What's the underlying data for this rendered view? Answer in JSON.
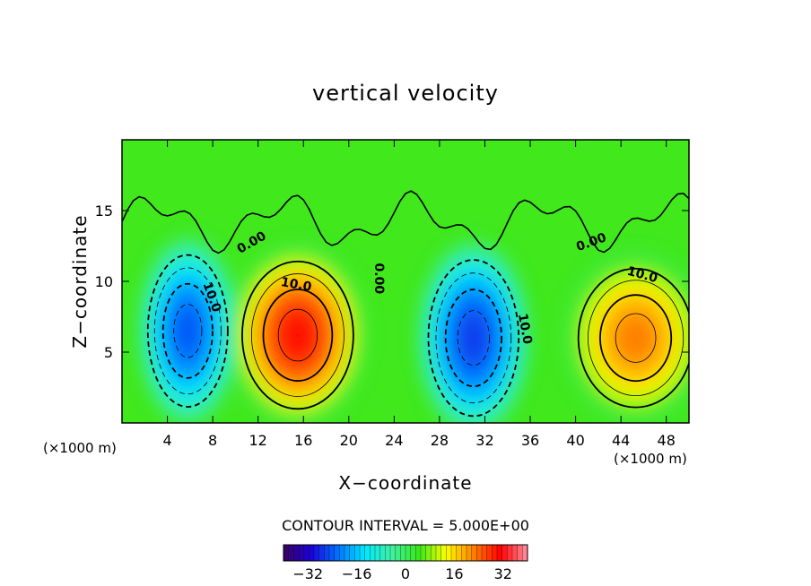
{
  "chart_data": {
    "type": "heatmap",
    "title": "vertical velocity",
    "xlabel": "X−coordinate",
    "ylabel": "Z−coordinate",
    "x_unit": "(×1000 m)",
    "y_unit": "(×1000 m)",
    "xlim": [
      0,
      50
    ],
    "ylim": [
      0,
      20
    ],
    "x_ticks": [
      "4",
      "8",
      "12",
      "16",
      "20",
      "24",
      "28",
      "32",
      "36",
      "40",
      "44",
      "48"
    ],
    "x_tick_values": [
      4,
      8,
      12,
      16,
      20,
      24,
      28,
      32,
      36,
      40,
      44,
      48
    ],
    "y_ticks": [
      "5",
      "10",
      "15"
    ],
    "y_tick_values": [
      5,
      10,
      15
    ],
    "contour_interval_text": "CONTOUR INTERVAL = 5.000E+00",
    "contour_labels": [
      {
        "text": "0.00",
        "x": 11.6,
        "y": 12.5,
        "angle": -30
      },
      {
        "text": "10.0",
        "x": 15.3,
        "y": 9.5,
        "angle": 10
      },
      {
        "text": "10.0",
        "x": 7.6,
        "y": 8.8,
        "angle": 70
      },
      {
        "text": "0.00",
        "x": 22.3,
        "y": 10.2,
        "angle": 90
      },
      {
        "text": "10.0",
        "x": 35.2,
        "y": 6.6,
        "angle": 80
      },
      {
        "text": "0.00",
        "x": 41.5,
        "y": 12.5,
        "angle": -20
      },
      {
        "text": "10.0",
        "x": 45.8,
        "y": 10.2,
        "angle": 15
      }
    ],
    "cells": [
      {
        "x": 5.8,
        "z": 6.5,
        "sx": 2.3,
        "sz": 3.5,
        "amp": -24
      },
      {
        "x": 15.5,
        "z": 6.2,
        "sx": 3.2,
        "sz": 3.4,
        "amp": 30
      },
      {
        "x": 31.0,
        "z": 6.0,
        "sx": 2.6,
        "sz": 3.6,
        "amp": -26
      },
      {
        "x": 45.3,
        "z": 6.0,
        "sx": 3.3,
        "sz": 3.2,
        "amp": 22
      }
    ],
    "colorbar": {
      "min": -40,
      "max": 40,
      "ticks": [
        "−32",
        "−16",
        "0",
        "16",
        "32"
      ],
      "tick_values": [
        -32,
        -16,
        0,
        16,
        32
      ],
      "colors": [
        "#3a0060",
        "#1c00d8",
        "#0070ff",
        "#00e8ff",
        "#40f0a0",
        "#38e818",
        "#ffff00",
        "#ff8000",
        "#ff0000",
        "#ff90a0"
      ]
    }
  }
}
